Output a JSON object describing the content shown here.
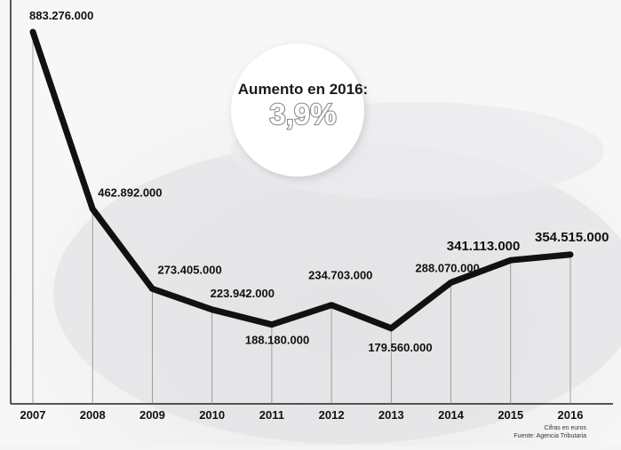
{
  "chart_data": {
    "type": "line",
    "title": "",
    "xlabel": "",
    "ylabel": "",
    "x": [
      "2007",
      "2008",
      "2009",
      "2010",
      "2011",
      "2012",
      "2013",
      "2014",
      "2015",
      "2016"
    ],
    "values": [
      883276000,
      462892000,
      273405000,
      223942000,
      188180000,
      234703000,
      179560000,
      288070000,
      341113000,
      354515000
    ],
    "value_labels": [
      "883.276.000",
      "462.892.000",
      "273.405.000",
      "223.942.000",
      "188.180.000",
      "234.703.000",
      "179.560.000",
      "288.070.000",
      "341.113.000",
      "354.515.000"
    ],
    "ylim": [
      0,
      900000000
    ],
    "grid": false,
    "line_color": "#111111"
  },
  "callout": {
    "label": "Aumento en 2016:",
    "value": "3,9%"
  },
  "footnote": {
    "units": "Cifras en euros",
    "source": "Fuente: Agencia Tributaria"
  }
}
